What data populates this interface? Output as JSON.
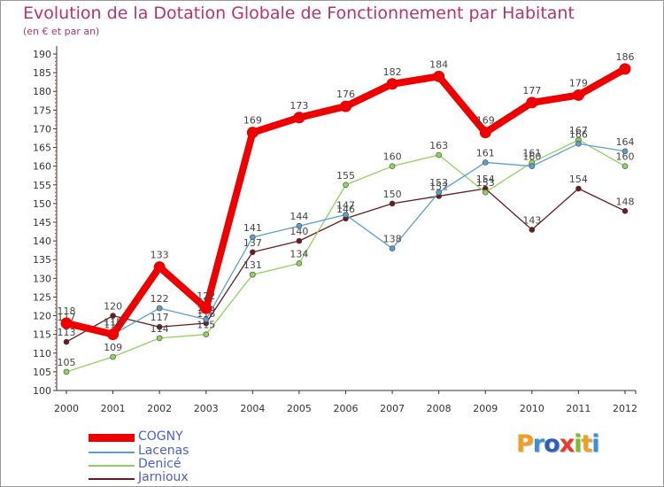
{
  "title": "Evolution de la Dotation Globale de Fonctionnement par Habitant",
  "subtitle": "(en € et par an)",
  "logo": {
    "text": "Proxiti",
    "letters": [
      "P",
      "r",
      "o",
      "x",
      "i",
      "t",
      "i"
    ],
    "colors": [
      "#f0a020",
      "#3c8fd6",
      "#2b5fb8",
      "#e53a2c",
      "#7cbd2a",
      "#f0a020",
      "#3c8fd6"
    ]
  },
  "chart_data": {
    "type": "line",
    "title": "Evolution de la Dotation Globale de Fonctionnement par Habitant",
    "subtitle": "(en € et par an)",
    "xlabel": "",
    "ylabel": "",
    "ylim": [
      100,
      190
    ],
    "y_ticks": [
      "100",
      "105",
      "110",
      "115",
      "120",
      "125",
      "130",
      "135",
      "140",
      "145",
      "150",
      "155",
      "160",
      "165",
      "170",
      "175",
      "180",
      "185",
      "190"
    ],
    "categories": [
      "2000",
      "2001",
      "2002",
      "2003",
      "2004",
      "2005",
      "2006",
      "2007",
      "2008",
      "2009",
      "2010",
      "2011",
      "2012"
    ],
    "grid": false,
    "legend_position": "bottom-left",
    "series": [
      {
        "name": "Jarnioux",
        "color": "#6b1a1e",
        "values": [
          113,
          120,
          117,
          118,
          137,
          140,
          146,
          150,
          152,
          154,
          143,
          154,
          148
        ],
        "labels": [
          "113",
          "120",
          "117",
          "118",
          "137",
          "140",
          "146",
          "150",
          "152",
          "154",
          "143",
          "154",
          "148"
        ]
      },
      {
        "name": "Denicé",
        "color": "#8fd35c",
        "values": [
          105,
          109,
          114,
          115,
          131,
          134,
          155,
          160,
          163,
          153,
          161,
          167,
          160
        ],
        "labels": [
          "105",
          "109",
          "114",
          "115",
          "131",
          "134",
          "155",
          "160",
          "163",
          "153",
          "161",
          "167",
          "160"
        ]
      },
      {
        "name": "Lacenas",
        "color": "#5a9fd0",
        "values": [
          117,
          115,
          122,
          119,
          141,
          144,
          147,
          138,
          153,
          161,
          160,
          166,
          164
        ],
        "labels": [
          "117",
          "115",
          "122",
          "119",
          "141",
          "144",
          "147",
          "138",
          "153",
          "161",
          "160",
          "166",
          "164"
        ]
      },
      {
        "name": "COGNY",
        "color": "#ee0000",
        "values": [
          118,
          115,
          133,
          122,
          169,
          173,
          176,
          182,
          184,
          169,
          177,
          179,
          186
        ],
        "labels": [
          "118",
          "115",
          "133",
          "122",
          "169",
          "173",
          "176",
          "182",
          "184",
          "169",
          "177",
          "179",
          "186"
        ]
      }
    ]
  },
  "legend": [
    {
      "name": "COGNY",
      "color": "#ee0000"
    },
    {
      "name": "Lacenas",
      "color": "#5a9fd0"
    },
    {
      "name": "Denicé",
      "color": "#8fd35c"
    },
    {
      "name": "Jarnioux",
      "color": "#6b1a1e"
    }
  ]
}
